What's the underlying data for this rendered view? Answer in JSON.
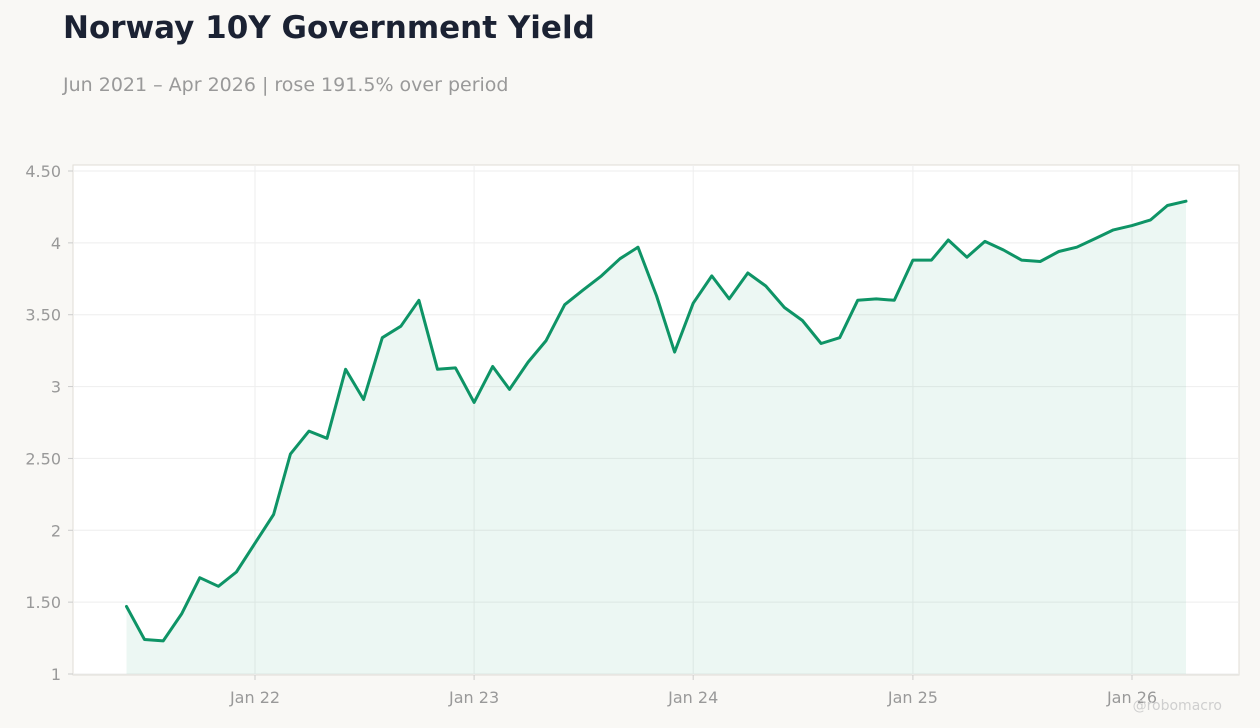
{
  "header": {
    "title": "Norway 10Y Government Yield",
    "subtitle": "Jun 2021 – Apr 2026 | rose 191.5% over period"
  },
  "watermark": "@robomacro",
  "colors": {
    "line": "#0e9466",
    "fill": "#0e9466",
    "background": "#f9f8f5",
    "plot_background": "#ffffff",
    "grid": "#eeeeee",
    "axis_text": "#999999"
  },
  "chart_data": {
    "type": "area",
    "title": "Norway 10Y Government Yield",
    "subtitle": "Jun 2021 – Apr 2026 | rose 191.5% over period",
    "xlabel": "",
    "ylabel": "",
    "xlim": [
      "2021-04-01",
      "2026-06-01"
    ],
    "ylim": [
      1,
      4.5
    ],
    "yticks": [
      1,
      1.5,
      2,
      2.5,
      3,
      3.5,
      4,
      4.5
    ],
    "yticklabels": [
      "1",
      "1.50",
      "2",
      "2.50",
      "3",
      "3.50",
      "4",
      "4.50"
    ],
    "xticks": [
      "2022-01-01",
      "2023-01-01",
      "2024-01-01",
      "2025-01-01",
      "2026-01-01"
    ],
    "xticklabels": [
      "Jan 22",
      "Jan 23",
      "Jan 24",
      "Jan 25",
      "Jan 26"
    ],
    "grid": true,
    "legend": "none",
    "series": [
      {
        "x": [
          "2021-06-01",
          "2021-07-01",
          "2021-08-01",
          "2021-09-01",
          "2021-10-01",
          "2021-11-01",
          "2021-12-01",
          "2022-01-01",
          "2022-02-01",
          "2022-03-01",
          "2022-04-01",
          "2022-05-01",
          "2022-06-01",
          "2022-07-01",
          "2022-08-01",
          "2022-09-01",
          "2022-10-01",
          "2022-11-01",
          "2022-12-01",
          "2023-01-01",
          "2023-02-01",
          "2023-03-01",
          "2023-04-01",
          "2023-05-01",
          "2023-06-01",
          "2023-07-01",
          "2023-08-01",
          "2023-09-01",
          "2023-10-01",
          "2023-11-01",
          "2023-12-01",
          "2024-01-01",
          "2024-02-01",
          "2024-03-01",
          "2024-04-01",
          "2024-05-01",
          "2024-06-01",
          "2024-07-01",
          "2024-08-01",
          "2024-09-01",
          "2024-10-01",
          "2024-11-01",
          "2024-12-01",
          "2025-01-01",
          "2025-02-01",
          "2025-03-01",
          "2025-04-01",
          "2025-05-01",
          "2025-06-01",
          "2025-07-01",
          "2025-08-01",
          "2025-09-01",
          "2025-10-01",
          "2025-11-01",
          "2025-12-01",
          "2026-01-01",
          "2026-02-01",
          "2026-03-01",
          "2026-04-01"
        ],
        "values": [
          1.47,
          1.24,
          1.23,
          1.42,
          1.67,
          1.61,
          1.71,
          1.91,
          2.11,
          2.53,
          2.69,
          2.64,
          3.12,
          2.91,
          3.34,
          3.42,
          3.6,
          3.12,
          3.13,
          2.89,
          3.14,
          2.98,
          3.17,
          3.32,
          3.57,
          3.67,
          3.77,
          3.89,
          3.97,
          3.63,
          3.24,
          3.58,
          3.77,
          3.61,
          3.79,
          3.7,
          3.55,
          3.46,
          3.3,
          3.34,
          3.6,
          3.61,
          3.6,
          3.88,
          3.88,
          4.02,
          3.9,
          4.01,
          3.95,
          3.88,
          3.87,
          3.94,
          3.97,
          4.03,
          4.09,
          4.12,
          4.16,
          4.26,
          4.29
        ]
      }
    ]
  }
}
